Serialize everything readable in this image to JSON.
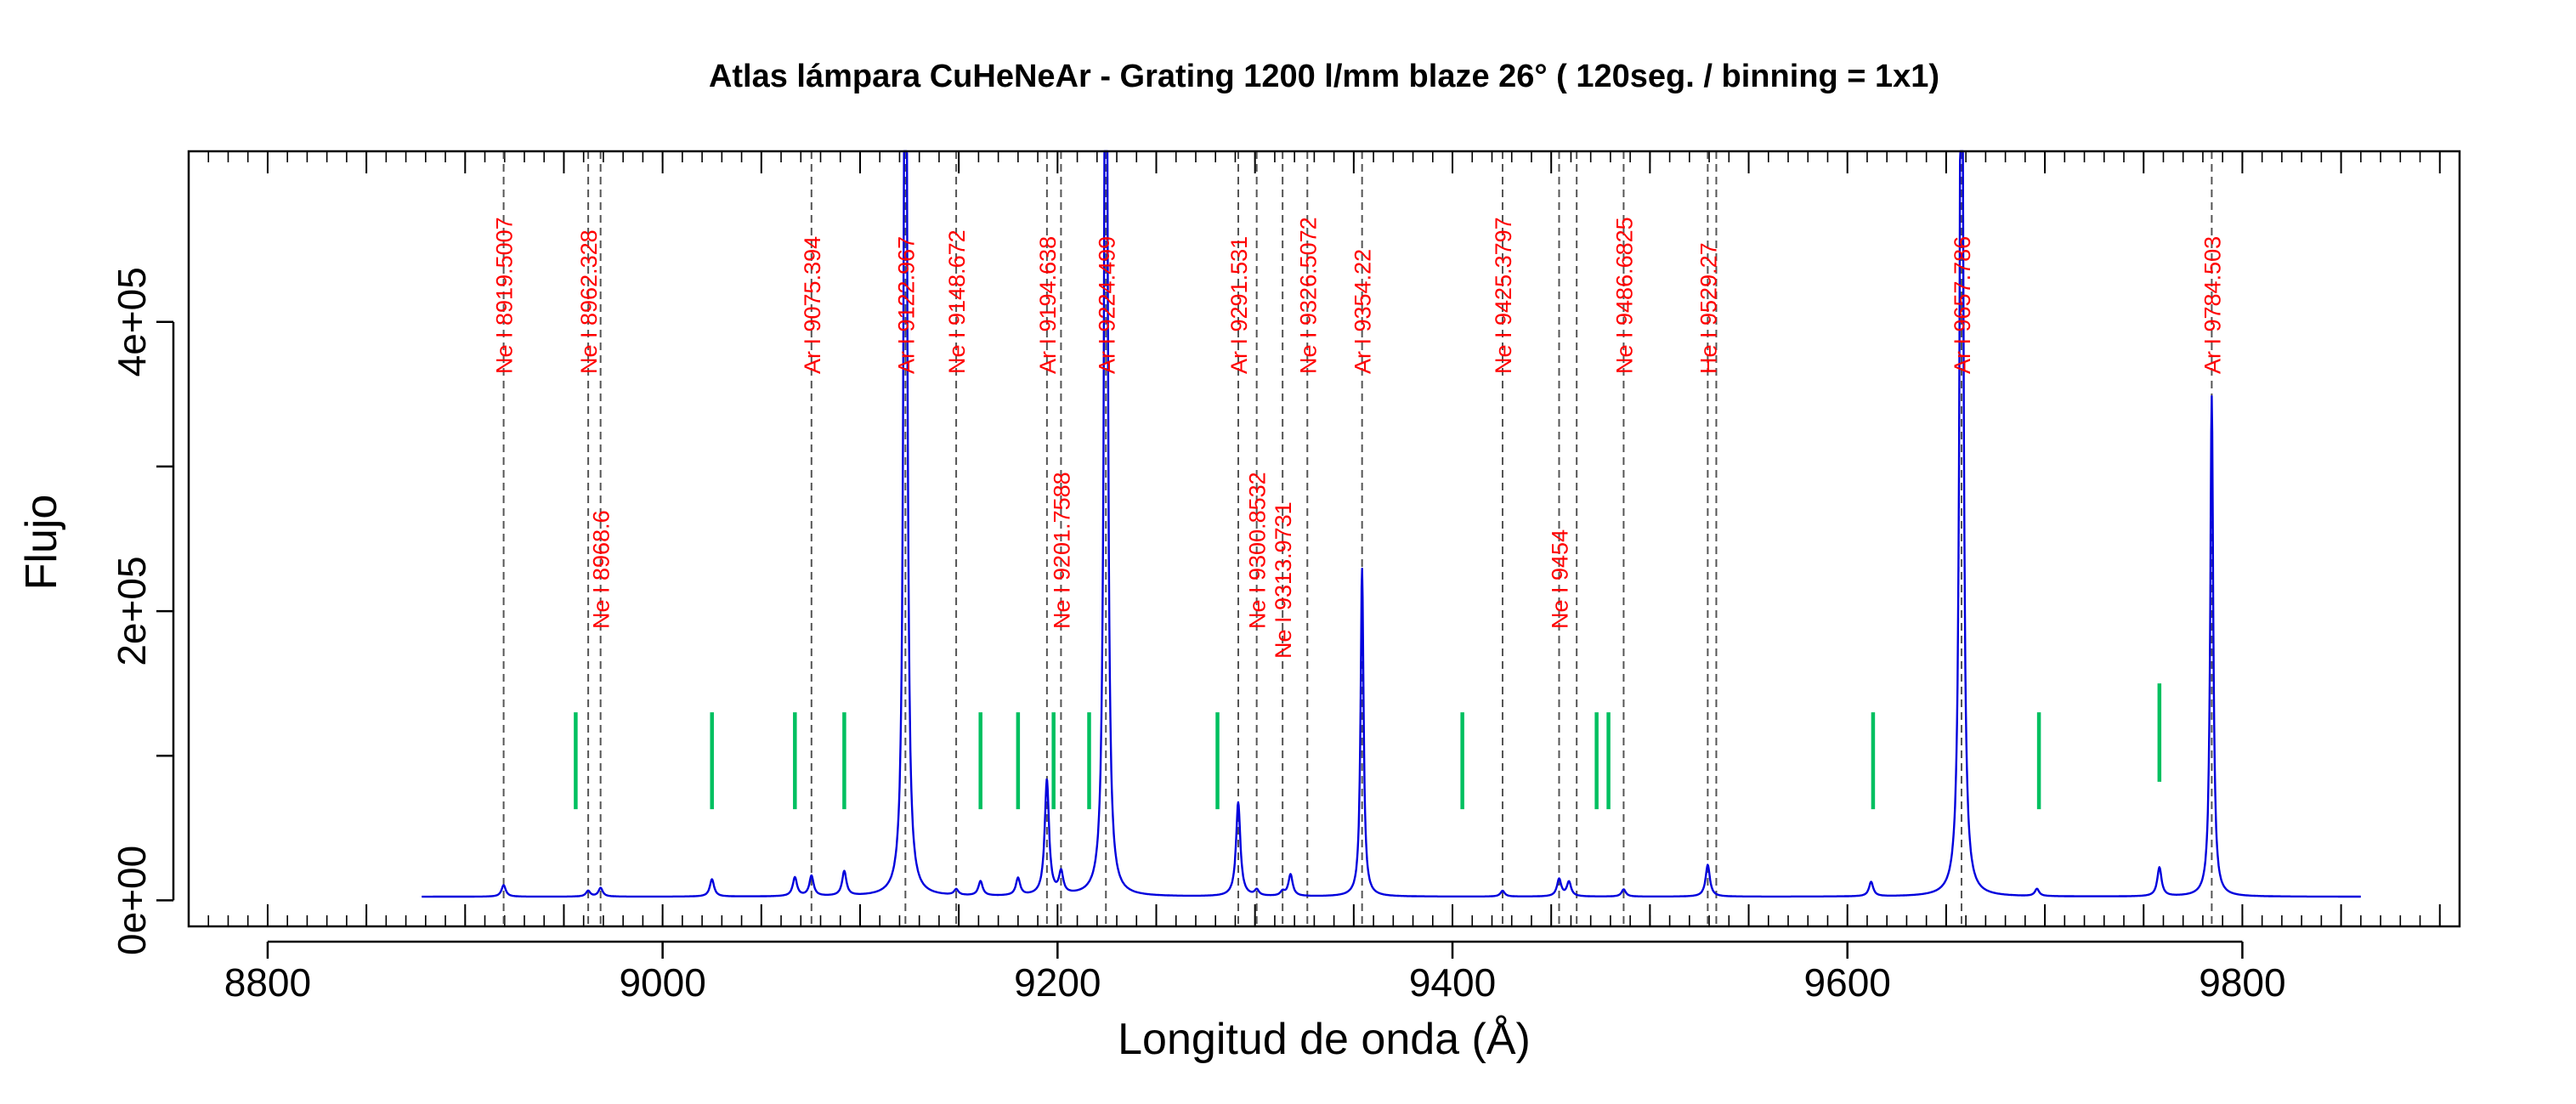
{
  "chart_data": {
    "type": "line",
    "title": "Atlas lámpara CuHeNeAr - Grating 1200 l/mm blaze 26° ( 120seg. / binning = 1x1)",
    "xlabel": "Longitud de onda (Å)",
    "ylabel": "Flujo",
    "xlim": [
      8760,
      9910
    ],
    "ylim": [
      -18000,
      518000
    ],
    "x_ticks": [
      8800,
      9000,
      9200,
      9400,
      9600,
      9800
    ],
    "x_tick_labels": [
      "8800",
      "9000",
      "9200",
      "9400",
      "9600",
      "9800"
    ],
    "y_ticks": [
      0,
      200000,
      400000
    ],
    "y_tick_labels": [
      "0e+00",
      "2e+05",
      "4e+05"
    ],
    "grid": false,
    "colors": {
      "spectrum": "#0000dd",
      "line_id_label": "#ff0000",
      "line_id_marker": "#555555",
      "extra_marker": "#00c060"
    },
    "series": [
      {
        "type": "spectrum",
        "x_range": [
          8878,
          9860
        ],
        "baseline": 2500,
        "peaks": [
          {
            "x": 8919.5,
            "y": 8000
          },
          {
            "x": 8962.3,
            "y": 4000
          },
          {
            "x": 8968.6,
            "y": 6000
          },
          {
            "x": 9025,
            "y": 12000
          },
          {
            "x": 9067,
            "y": 13000
          },
          {
            "x": 9075.4,
            "y": 14000
          },
          {
            "x": 9092,
            "y": 17000
          },
          {
            "x": 9122.97,
            "y": 900000
          },
          {
            "x": 9148.7,
            "y": 4000
          },
          {
            "x": 9161,
            "y": 10000
          },
          {
            "x": 9180,
            "y": 12000
          },
          {
            "x": 9194.6,
            "y": 80000
          },
          {
            "x": 9201.8,
            "y": 15000
          },
          {
            "x": 9224.5,
            "y": 900000
          },
          {
            "x": 9291.5,
            "y": 65000
          },
          {
            "x": 9300.9,
            "y": 4000
          },
          {
            "x": 9313.97,
            "y": 3000
          },
          {
            "x": 9318,
            "y": 15000
          },
          {
            "x": 9354.22,
            "y": 227000
          },
          {
            "x": 9425.38,
            "y": 4000
          },
          {
            "x": 9454,
            "y": 12000
          },
          {
            "x": 9459,
            "y": 10000
          },
          {
            "x": 9486.7,
            "y": 5000
          },
          {
            "x": 9529.27,
            "y": 22000
          },
          {
            "x": 9612,
            "y": 10000
          },
          {
            "x": 9657.79,
            "y": 900000
          },
          {
            "x": 9696,
            "y": 5000
          },
          {
            "x": 9758,
            "y": 20000
          },
          {
            "x": 9784.5,
            "y": 346000
          }
        ]
      }
    ],
    "line_ids": [
      {
        "wavelength": 8919.5007,
        "label": "Ne I   8919.5007",
        "level": "high"
      },
      {
        "wavelength": 8962.328,
        "label": "Ne I   8962.328",
        "level": "high"
      },
      {
        "wavelength": 8968.6,
        "label": "Ne I   8968.6",
        "level": "low"
      },
      {
        "wavelength": 9075.394,
        "label": "Ar I   9075.394",
        "level": "high"
      },
      {
        "wavelength": 9122.967,
        "label": "Ar I   9122.967",
        "level": "high"
      },
      {
        "wavelength": 9148.672,
        "label": "Ne I   9148.672",
        "level": "high"
      },
      {
        "wavelength": 9194.638,
        "label": "Ar I   9194.638",
        "level": "high"
      },
      {
        "wavelength": 9201.7588,
        "label": "Ne I   9201.7588",
        "level": "low"
      },
      {
        "wavelength": 9224.499,
        "label": "Ar I   9224.499",
        "level": "high"
      },
      {
        "wavelength": 9291.531,
        "label": "Ar I   9291.531",
        "level": "high"
      },
      {
        "wavelength": 9300.8532,
        "label": "Ne I   9300.8532",
        "level": "low"
      },
      {
        "wavelength": 9313.9731,
        "label": "Ne I   9313.9731",
        "level": "low2"
      },
      {
        "wavelength": 9326.5072,
        "label": "Ne I   9326.5072",
        "level": "high"
      },
      {
        "wavelength": 9354.22,
        "label": "Ar I   9354.22",
        "level": "high"
      },
      {
        "wavelength": 9425.3797,
        "label": "Ne I   9425.3797",
        "level": "high"
      },
      {
        "wavelength": 9454,
        "label": "Ne I   9454",
        "level": "low"
      },
      {
        "wavelength": 9486.6825,
        "label": "Ne I   9486.6825",
        "level": "high"
      },
      {
        "wavelength": 9529.27,
        "label": "He I   9529.27",
        "level": "high"
      },
      {
        "wavelength": 9657.786,
        "label": "Ar I   9657.786",
        "level": "high"
      },
      {
        "wavelength": 9784.503,
        "label": "Ar I   9784.503",
        "level": "high"
      }
    ],
    "line_ids_unlabeled": [
      9462.9,
      9533.6
    ],
    "extra_markers": [
      {
        "x": 8956,
        "y1": 63000,
        "y2": 130000
      },
      {
        "x": 9025,
        "y1": 63000,
        "y2": 130000
      },
      {
        "x": 9067,
        "y1": 63000,
        "y2": 130000
      },
      {
        "x": 9092,
        "y1": 63000,
        "y2": 130000
      },
      {
        "x": 9161,
        "y1": 63000,
        "y2": 130000
      },
      {
        "x": 9180,
        "y1": 63000,
        "y2": 130000
      },
      {
        "x": 9198,
        "y1": 63000,
        "y2": 130000
      },
      {
        "x": 9216,
        "y1": 63000,
        "y2": 130000
      },
      {
        "x": 9281,
        "y1": 63000,
        "y2": 130000
      },
      {
        "x": 9405,
        "y1": 63000,
        "y2": 130000
      },
      {
        "x": 9473,
        "y1": 63000,
        "y2": 130000
      },
      {
        "x": 9479,
        "y1": 63000,
        "y2": 130000
      },
      {
        "x": 9613,
        "y1": 63000,
        "y2": 130000
      },
      {
        "x": 9697,
        "y1": 63000,
        "y2": 130000
      },
      {
        "x": 9758,
        "y1": 82000,
        "y2": 150000
      }
    ]
  }
}
